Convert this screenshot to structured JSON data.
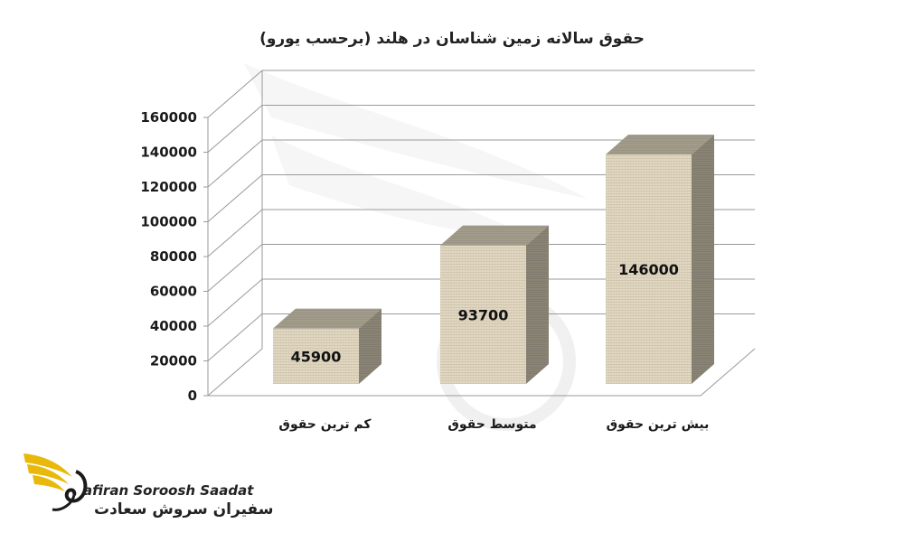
{
  "chart_data": {
    "type": "bar",
    "title": "حقوق سالانه زمین شناسان در هلند (برحسب یورو)",
    "categories": [
      "کم ترین حقوق",
      "متوسط حقوق",
      "بیش ترین حقوق"
    ],
    "values": [
      45900,
      93700,
      146000
    ],
    "data_labels": [
      "45900",
      "93700",
      "146000"
    ],
    "ylim": [
      0,
      160000
    ],
    "yticks": [
      "0",
      "20000",
      "40000",
      "60000",
      "80000",
      "100000",
      "120000",
      "140000",
      "160000"
    ],
    "grid": true,
    "three_d": true,
    "bar_texture": "burlap",
    "colors": {
      "bar_front": "#e2d8c3",
      "bar_side": "#8b8575",
      "bar_top": "#a39d8c",
      "grid": "#9a9a9a"
    }
  },
  "logo": {
    "text_en": "afiran Soroosh Saadat",
    "text_fa": "سفیران سروش سعادت",
    "colors": {
      "wing": "#e8b90a",
      "mark": "#1a1a1a"
    }
  }
}
